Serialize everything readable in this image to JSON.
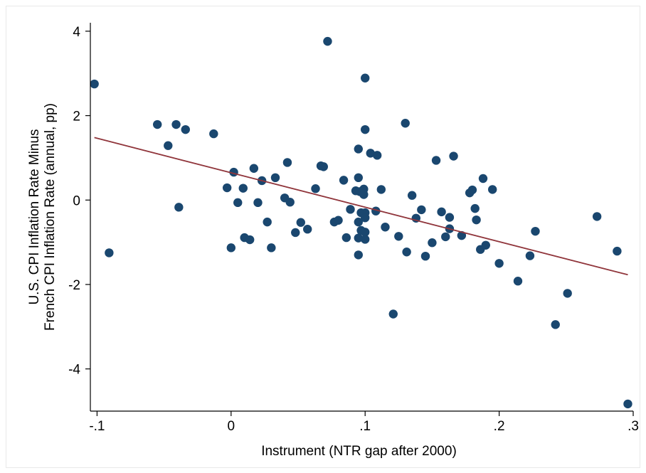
{
  "chart_data": {
    "type": "scatter",
    "title": "",
    "xlabel": "Instrument (NTR gap after 2000)",
    "ylabel_lines": [
      "U.S. CPI Inflation Rate Minus",
      "French CPI Inflation Rate (annual, pp)"
    ],
    "xlim": [
      -0.105,
      0.3
    ],
    "ylim": [
      -5.0,
      4.2
    ],
    "x_ticks": [
      -0.1,
      0,
      0.1,
      0.2,
      0.3
    ],
    "x_tick_labels": [
      "-.1",
      "0",
      ".1",
      ".2",
      ".3"
    ],
    "y_ticks": [
      -4,
      -2,
      0,
      2,
      4
    ],
    "y_tick_labels": [
      "-4",
      "-2",
      "0",
      "2",
      "4"
    ],
    "grid": false,
    "colors": {
      "points": "#1a476f",
      "fit_line": "#90353b",
      "axis": "#000000"
    },
    "series": [
      {
        "marker": "circle",
        "points": [
          [
            -0.102,
            2.75
          ],
          [
            -0.091,
            -1.25
          ],
          [
            -0.055,
            1.79
          ],
          [
            -0.047,
            1.29
          ],
          [
            -0.041,
            1.79
          ],
          [
            -0.039,
            -0.17
          ],
          [
            -0.034,
            1.67
          ],
          [
            -0.013,
            1.57
          ],
          [
            -0.003,
            0.29
          ],
          [
            0.0,
            -1.13
          ],
          [
            0.002,
            0.66
          ],
          [
            0.005,
            -0.06
          ],
          [
            0.009,
            0.28
          ],
          [
            0.01,
            -0.89
          ],
          [
            0.014,
            -0.94
          ],
          [
            0.017,
            0.75
          ],
          [
            0.02,
            -0.06
          ],
          [
            0.023,
            0.46
          ],
          [
            0.027,
            -0.52
          ],
          [
            0.03,
            -1.13
          ],
          [
            0.033,
            0.53
          ],
          [
            0.04,
            0.05
          ],
          [
            0.042,
            0.89
          ],
          [
            0.044,
            -0.05
          ],
          [
            0.048,
            -0.77
          ],
          [
            0.052,
            -0.53
          ],
          [
            0.057,
            -0.69
          ],
          [
            0.063,
            0.27
          ],
          [
            0.067,
            0.81
          ],
          [
            0.069,
            0.79
          ],
          [
            0.072,
            3.76
          ],
          [
            0.077,
            -0.52
          ],
          [
            0.08,
            -0.48
          ],
          [
            0.084,
            0.47
          ],
          [
            0.086,
            -0.89
          ],
          [
            0.089,
            -0.22
          ],
          [
            0.093,
            0.22
          ],
          [
            0.095,
            0.53
          ],
          [
            0.095,
            1.21
          ],
          [
            0.095,
            -0.52
          ],
          [
            0.095,
            -0.9
          ],
          [
            0.095,
            -1.3
          ],
          [
            0.096,
            0.2
          ],
          [
            0.097,
            -0.3
          ],
          [
            0.097,
            -0.72
          ],
          [
            0.099,
            0.26
          ],
          [
            0.099,
            0.13
          ],
          [
            0.1,
            2.89
          ],
          [
            0.1,
            1.67
          ],
          [
            0.1,
            -0.3
          ],
          [
            0.1,
            -0.42
          ],
          [
            0.1,
            -0.76
          ],
          [
            0.1,
            -0.93
          ],
          [
            0.104,
            1.11
          ],
          [
            0.108,
            -0.26
          ],
          [
            0.109,
            1.06
          ],
          [
            0.112,
            0.25
          ],
          [
            0.115,
            -0.64
          ],
          [
            0.121,
            -2.7
          ],
          [
            0.125,
            -0.86
          ],
          [
            0.13,
            1.82
          ],
          [
            0.131,
            -1.23
          ],
          [
            0.135,
            0.11
          ],
          [
            0.138,
            -0.43
          ],
          [
            0.142,
            -0.23
          ],
          [
            0.145,
            -1.33
          ],
          [
            0.15,
            -1.01
          ],
          [
            0.153,
            0.94
          ],
          [
            0.157,
            -0.28
          ],
          [
            0.16,
            -0.87
          ],
          [
            0.163,
            -0.41
          ],
          [
            0.163,
            -0.68
          ],
          [
            0.166,
            1.04
          ],
          [
            0.172,
            -0.84
          ],
          [
            0.178,
            0.17
          ],
          [
            0.18,
            0.24
          ],
          [
            0.182,
            -0.2
          ],
          [
            0.183,
            -0.47
          ],
          [
            0.186,
            -1.17
          ],
          [
            0.188,
            0.51
          ],
          [
            0.19,
            -1.07
          ],
          [
            0.195,
            0.25
          ],
          [
            0.2,
            -1.5
          ],
          [
            0.214,
            -1.92
          ],
          [
            0.223,
            -1.32
          ],
          [
            0.227,
            -0.74
          ],
          [
            0.242,
            -2.95
          ],
          [
            0.251,
            -2.21
          ],
          [
            0.273,
            -0.39
          ],
          [
            0.288,
            -1.21
          ],
          [
            0.296,
            -4.83
          ]
        ]
      }
    ],
    "fit_line": [
      [
        -0.102,
        1.48
      ],
      [
        0.296,
        -1.77
      ]
    ]
  }
}
